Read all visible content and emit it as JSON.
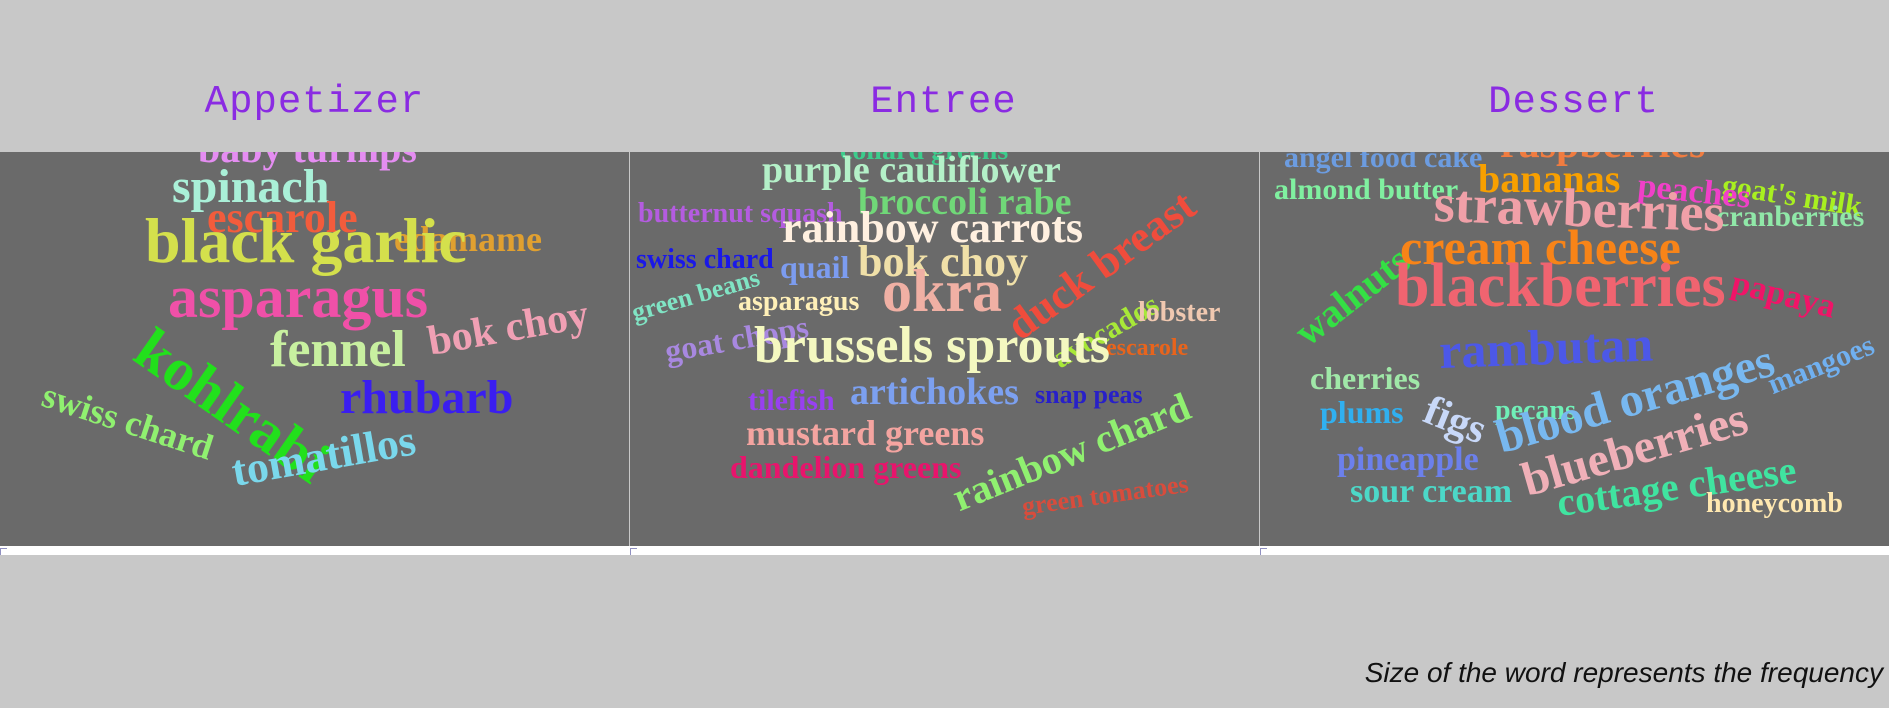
{
  "caption": "Size of the word represents the frequency",
  "chart_data": [
    {
      "type": "wordcloud",
      "title": "Appetizer",
      "words": [
        {
          "text": "baby turnips",
          "weight": 40,
          "color": "#e58df2"
        },
        {
          "text": "spinach",
          "weight": 48,
          "color": "#aaf0d8"
        },
        {
          "text": "escarole",
          "weight": 44,
          "color": "#f25c3c"
        },
        {
          "text": "edamame",
          "weight": 36,
          "color": "#e0a030"
        },
        {
          "text": "black garlic",
          "weight": 64,
          "color": "#d4e04c"
        },
        {
          "text": "asparagus",
          "weight": 60,
          "color": "#f050a8"
        },
        {
          "text": "kohlrabi",
          "weight": 60,
          "color": "#22e01c"
        },
        {
          "text": "fennel",
          "weight": 52,
          "color": "#c8f0a0"
        },
        {
          "text": "bok choy",
          "weight": 42,
          "color": "#f0a0b4"
        },
        {
          "text": "swiss chard",
          "weight": 36,
          "color": "#90f070"
        },
        {
          "text": "rhubarb",
          "weight": 48,
          "color": "#3a1ef0"
        },
        {
          "text": "tomatillos",
          "weight": 44,
          "color": "#7ad8ec"
        }
      ]
    },
    {
      "type": "wordcloud",
      "title": "Entree",
      "words": [
        {
          "text": "collard greens",
          "weight": 28,
          "color": "#3ccc8c"
        },
        {
          "text": "purple cauliflower",
          "weight": 38,
          "color": "#b4f0c8"
        },
        {
          "text": "broccoli rabe",
          "weight": 38,
          "color": "#70d878"
        },
        {
          "text": "butternut squash",
          "weight": 28,
          "color": "#b45ce0"
        },
        {
          "text": "rainbow carrots",
          "weight": 44,
          "color": "#fff0e0"
        },
        {
          "text": "swiss chard",
          "weight": 28,
          "color": "#1a18e8"
        },
        {
          "text": "green beans",
          "weight": 26,
          "color": "#80e4c4"
        },
        {
          "text": "quail",
          "weight": 32,
          "color": "#7c9cf0"
        },
        {
          "text": "bok choy",
          "weight": 44,
          "color": "#f0e0a8"
        },
        {
          "text": "asparagus",
          "weight": 28,
          "color": "#fff0b8"
        },
        {
          "text": "goat chops",
          "weight": 32,
          "color": "#a888e0"
        },
        {
          "text": "okra",
          "weight": 60,
          "color": "#f0b0a4"
        },
        {
          "text": "duck breast",
          "weight": 44,
          "color": "#f04c3c"
        },
        {
          "text": "avocados",
          "weight": 30,
          "color": "#a8e838"
        },
        {
          "text": "lobster",
          "weight": 28,
          "color": "#f0c8b0"
        },
        {
          "text": "escarole",
          "weight": 24,
          "color": "#e8641c"
        },
        {
          "text": "brussels sprouts",
          "weight": 52,
          "color": "#f4f8c0"
        },
        {
          "text": "tilefish",
          "weight": 30,
          "color": "#9840f0"
        },
        {
          "text": "artichokes",
          "weight": 38,
          "color": "#7ca0f0"
        },
        {
          "text": "snap peas",
          "weight": 26,
          "color": "#2820c8"
        },
        {
          "text": "rainbow chard",
          "weight": 40,
          "color": "#90f070"
        },
        {
          "text": "mustard greens",
          "weight": 36,
          "color": "#f4a4a0"
        },
        {
          "text": "dandelion greens",
          "weight": 32,
          "color": "#e8146c"
        },
        {
          "text": "green tomatoes",
          "weight": 26,
          "color": "#d84c3c"
        }
      ]
    },
    {
      "type": "wordcloud",
      "title": "Dessert",
      "words": [
        {
          "text": "angel food cake",
          "weight": 30,
          "color": "#6c9ce0"
        },
        {
          "text": "raspberries",
          "weight": 42,
          "color": "#f07c40"
        },
        {
          "text": "goat's milk",
          "weight": 30,
          "color": "#a8f020"
        },
        {
          "text": "almond butter",
          "weight": 30,
          "color": "#80f0a0"
        },
        {
          "text": "bananas",
          "weight": 40,
          "color": "#f8a000"
        },
        {
          "text": "peaches",
          "weight": 34,
          "color": "#f040c8"
        },
        {
          "text": "cranberries",
          "weight": 30,
          "color": "#90e8a8"
        },
        {
          "text": "walnuts",
          "weight": 40,
          "color": "#34e044"
        },
        {
          "text": "strawberries",
          "weight": 54,
          "color": "#f0a0a8"
        },
        {
          "text": "cream cheese",
          "weight": 50,
          "color": "#f88418"
        },
        {
          "text": "papaya",
          "weight": 34,
          "color": "#f01468"
        },
        {
          "text": "blackberries",
          "weight": 62,
          "color": "#f06470"
        },
        {
          "text": "cherries",
          "weight": 32,
          "color": "#a0e8a8"
        },
        {
          "text": "rambutan",
          "weight": 50,
          "color": "#4c58e8"
        },
        {
          "text": "mangoes",
          "weight": 30,
          "color": "#70b0f0"
        },
        {
          "text": "plums",
          "weight": 32,
          "color": "#30b0f0"
        },
        {
          "text": "figs",
          "weight": 42,
          "color": "#c8d8f8"
        },
        {
          "text": "pecans",
          "weight": 28,
          "color": "#70f0b8"
        },
        {
          "text": "blood oranges",
          "weight": 48,
          "color": "#78b8f0"
        },
        {
          "text": "pineapple",
          "weight": 34,
          "color": "#6c80ec"
        },
        {
          "text": "blueberries",
          "weight": 48,
          "color": "#f0b0b8"
        },
        {
          "text": "sour cream",
          "weight": 34,
          "color": "#4cd8c8"
        },
        {
          "text": "cottage cheese",
          "weight": 40,
          "color": "#40e4a0"
        },
        {
          "text": "honeycomb",
          "weight": 28,
          "color": "#ffe8b0"
        }
      ]
    }
  ]
}
